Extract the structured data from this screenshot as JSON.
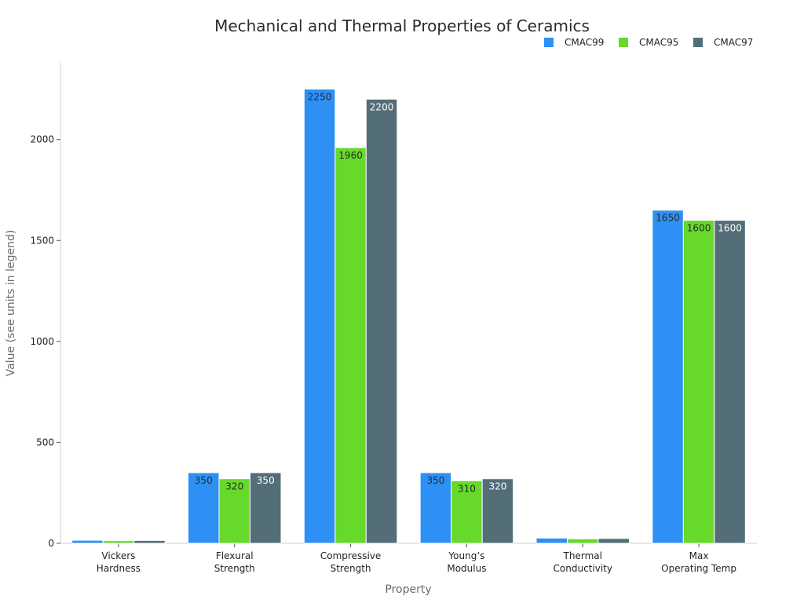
{
  "chart_data": {
    "type": "bar",
    "title": "Mechanical and Thermal Properties of Ceramics",
    "xlabel": "Property",
    "ylabel": "Value (see units in legend)",
    "categories": [
      [
        "Vickers",
        "Hardness"
      ],
      [
        "Flexural",
        "Strength"
      ],
      [
        "Compressive",
        "Strength"
      ],
      [
        "Young’s",
        "Modulus"
      ],
      [
        "Thermal",
        "Conductivity"
      ],
      [
        "Max",
        "Operating Temp"
      ]
    ],
    "series": [
      {
        "name": "CMAC99",
        "color": "#2E90F5",
        "label_color": "#2a2a2a",
        "values": [
          15,
          350,
          2250,
          350,
          26,
          1650
        ]
      },
      {
        "name": "CMAC95",
        "color": "#66D92B",
        "label_color": "#2a2a2a",
        "values": [
          13,
          320,
          1960,
          310,
          22,
          1600
        ]
      },
      {
        "name": "CMAC97",
        "color": "#546E78",
        "label_color": "#ffffff",
        "values": [
          14,
          350,
          2200,
          320,
          24,
          1600
        ]
      }
    ],
    "ylim": [
      0,
      2380
    ],
    "yticks": [
      0,
      500,
      1000,
      1500,
      2000
    ],
    "grid": false,
    "legend_position": "top-right"
  }
}
